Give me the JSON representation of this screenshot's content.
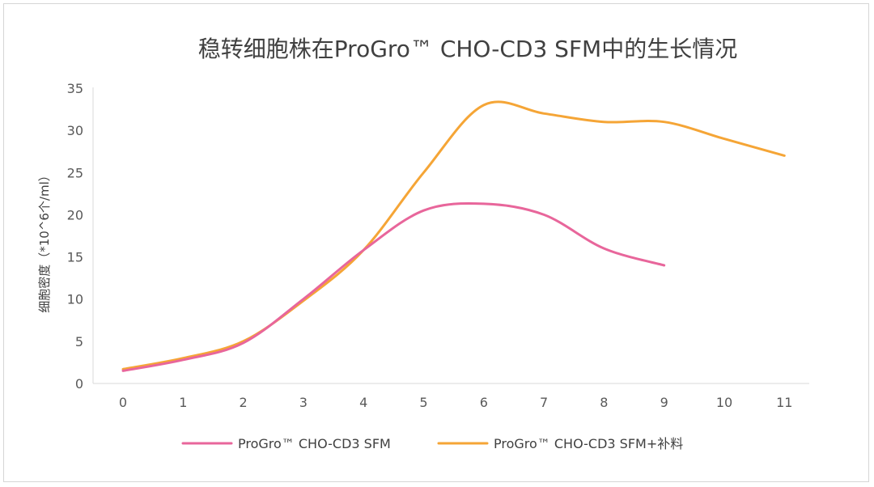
{
  "chart_data": {
    "type": "line",
    "title": "稳转细胞株在ProGro™ CHO-CD3 SFM中的生长情况",
    "xlabel": "",
    "ylabel": "细胞密度（*10^6个/ml）",
    "x": [
      0,
      1,
      2,
      3,
      4,
      5,
      6,
      7,
      8,
      9,
      10,
      11
    ],
    "xlim": [
      0,
      11
    ],
    "ylim": [
      0,
      35
    ],
    "yticks": [
      0,
      5,
      10,
      15,
      20,
      25,
      30,
      35
    ],
    "grid": false,
    "legend_position": "bottom",
    "series": [
      {
        "name": "ProGro™ CHO-CD3 SFM",
        "color": "#e8669b",
        "x": [
          0,
          1,
          2,
          3,
          4,
          5,
          6,
          7,
          8,
          9
        ],
        "values": [
          1.5,
          2.8,
          4.8,
          10.0,
          15.8,
          20.5,
          21.3,
          20.0,
          16.0,
          14.0
        ]
      },
      {
        "name": "ProGro™ CHO-CD3 SFM+补料",
        "color": "#f5a536",
        "x": [
          0,
          1,
          2,
          3,
          4,
          5,
          6,
          7,
          8,
          9,
          10,
          11
        ],
        "values": [
          1.7,
          3.0,
          5.0,
          9.8,
          15.8,
          25.0,
          33.0,
          32.0,
          31.0,
          31.0,
          29.0,
          27.0
        ]
      }
    ]
  }
}
